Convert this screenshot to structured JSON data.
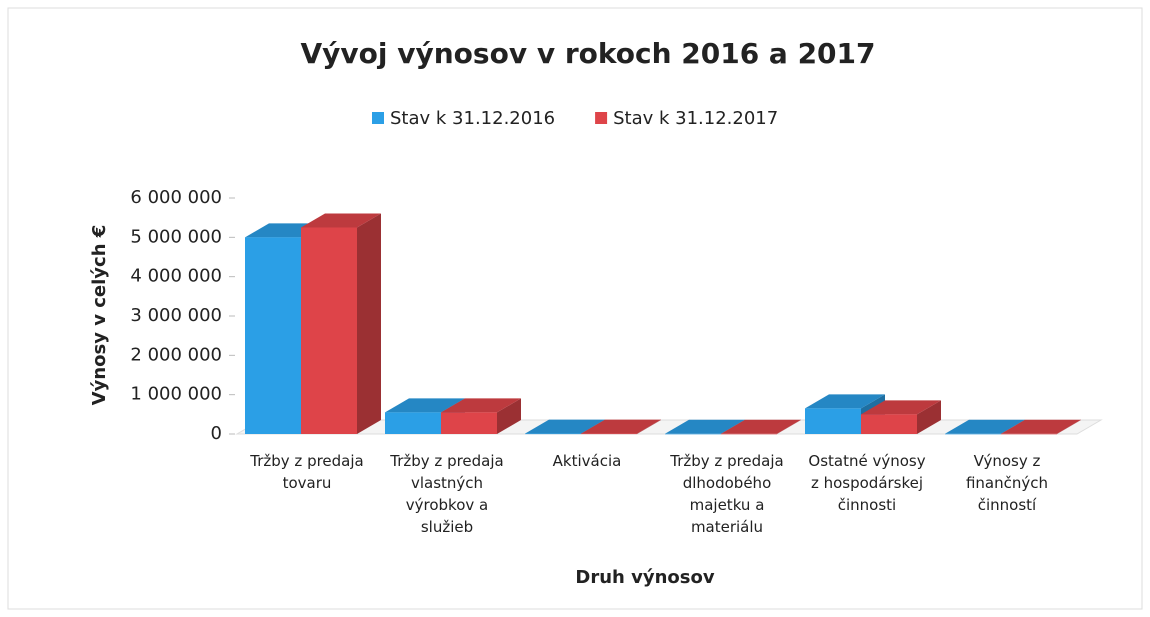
{
  "chart_data": {
    "type": "bar3d",
    "title": "Vývoj výnosov v rokoch 2016 a 2017",
    "xlabel": "Druh výnosov",
    "ylabel": "Výnosy v celých €",
    "categories": [
      "Tržby z predaja tovaru",
      "Tržby z predaja vlastných výrobkov a služieb",
      "Aktivácia",
      "Tržby z predaja dlhodobého majetku a materiálu",
      "Ostatné výnosy z hospodárskej činnosti",
      "Výnosy z finančných činností"
    ],
    "series": [
      {
        "name": "Stav k 31.12.2016",
        "color": "#2b9fe6",
        "values": [
          5000000,
          550000,
          10000,
          5000,
          650000,
          5000
        ]
      },
      {
        "name": "Stav k 31.12.2017",
        "color": "#de4449",
        "values": [
          5250000,
          550000,
          10000,
          5000,
          500000,
          5000
        ]
      }
    ],
    "ylim": [
      0,
      6000000
    ],
    "yticks": [
      0,
      {
        "value": 1000000,
        "label": "1 000 000"
      },
      {
        "value": 2000000,
        "label": "2 000 000"
      },
      {
        "value": 3000000,
        "label": "3 000 000"
      },
      {
        "value": 4000000,
        "label": "4 000 000"
      },
      {
        "value": 5000000,
        "label": "5 000 000"
      },
      {
        "value": 6000000,
        "label": "6 000 000"
      }
    ],
    "legend": "top",
    "grid": false
  }
}
